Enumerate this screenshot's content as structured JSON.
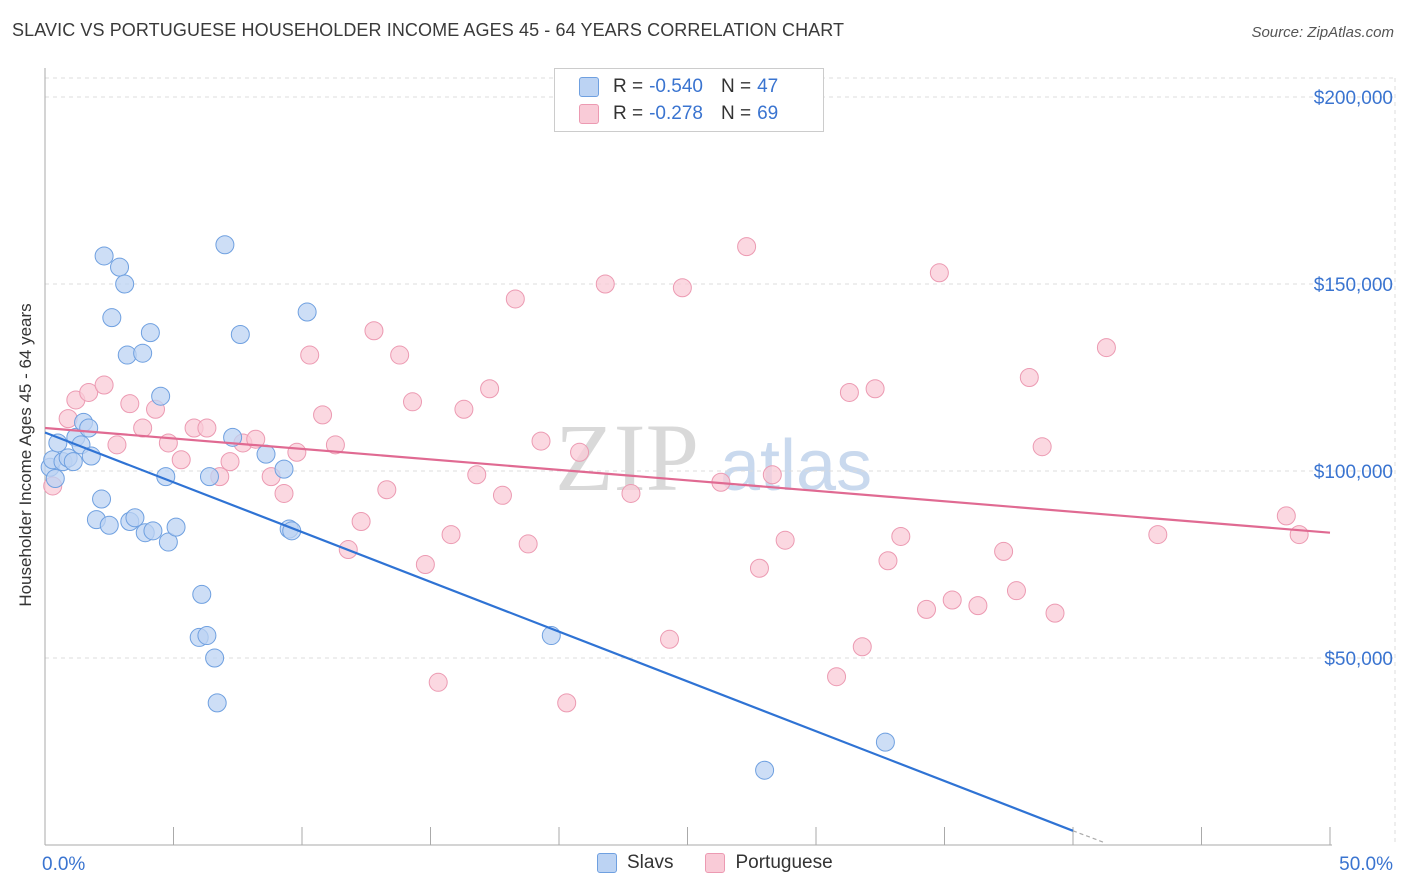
{
  "title": "SLAVIC VS PORTUGUESE HOUSEHOLDER INCOME AGES 45 - 64 YEARS CORRELATION CHART",
  "source": "Source: ZipAtlas.com",
  "watermark": {
    "zip": "ZIP",
    "atlas": "atlas"
  },
  "legend": {
    "rows": [
      {
        "r_label": "R =",
        "r_value": "-0.540",
        "n_label": "N =",
        "n_value": "47",
        "fill": "#bcd3f3",
        "stroke": "#6fa0e0"
      },
      {
        "r_label": "R =",
        "r_value": "-0.278",
        "n_label": "N =",
        "n_value": "69",
        "fill": "#f9cbd7",
        "stroke": "#ec9ab2"
      }
    ]
  },
  "bottom_legend": [
    {
      "label": "Slavs",
      "fill": "#bcd3f3",
      "stroke": "#6fa0e0"
    },
    {
      "label": "Portuguese",
      "fill": "#f9cbd7",
      "stroke": "#ec9ab2"
    }
  ],
  "chart_data": {
    "type": "scatter",
    "title": "SLAVIC VS PORTUGUESE HOUSEHOLDER INCOME AGES 45 - 64 YEARS CORRELATION CHART",
    "xlabel": "",
    "ylabel": "Householder Income Ages 45 - 64 years",
    "xlim": [
      0,
      50
    ],
    "ylim": [
      0,
      200000
    ],
    "x_tick_labels": [
      "0.0%",
      "50.0%"
    ],
    "y_ticks": [
      50000,
      100000,
      150000,
      200000
    ],
    "y_tick_labels": [
      "$50,000",
      "$100,000",
      "$150,000",
      "$200,000"
    ],
    "grid": true,
    "legend_position": "top-center",
    "series": [
      {
        "name": "Slavs",
        "color": "#6fa0e0",
        "fill": "#bcd3f3",
        "line_color": "#2f73d4",
        "trend": {
          "x": [
            0,
            40
          ],
          "y": [
            110300,
            3800
          ]
        },
        "trend_dashed_extension": {
          "x": [
            40,
            41.2
          ],
          "y": [
            3800,
            700
          ]
        },
        "points": [
          [
            0.2,
            101000
          ],
          [
            0.3,
            103000
          ],
          [
            0.5,
            107500
          ],
          [
            0.7,
            102500
          ],
          [
            0.9,
            103500
          ],
          [
            1.1,
            102500
          ],
          [
            1.2,
            109000
          ],
          [
            1.4,
            107000
          ],
          [
            1.5,
            113000
          ],
          [
            1.7,
            111500
          ],
          [
            1.8,
            104000
          ],
          [
            2.0,
            87000
          ],
          [
            2.2,
            92500
          ],
          [
            2.3,
            157500
          ],
          [
            2.5,
            85500
          ],
          [
            2.6,
            141000
          ],
          [
            2.9,
            154500
          ],
          [
            3.1,
            150000
          ],
          [
            3.2,
            131000
          ],
          [
            3.3,
            86500
          ],
          [
            3.5,
            87500
          ],
          [
            3.8,
            131500
          ],
          [
            3.9,
            83500
          ],
          [
            4.1,
            137000
          ],
          [
            4.2,
            84000
          ],
          [
            4.5,
            120000
          ],
          [
            4.7,
            98500
          ],
          [
            4.8,
            81000
          ],
          [
            5.1,
            85000
          ],
          [
            6.0,
            55500
          ],
          [
            6.1,
            67000
          ],
          [
            6.3,
            56000
          ],
          [
            6.4,
            98500
          ],
          [
            6.6,
            50000
          ],
          [
            6.7,
            38000
          ],
          [
            7.0,
            160500
          ],
          [
            7.3,
            109000
          ],
          [
            7.6,
            136500
          ],
          [
            8.6,
            104500
          ],
          [
            9.3,
            100500
          ],
          [
            9.5,
            84500
          ],
          [
            9.6,
            84000
          ],
          [
            10.2,
            142500
          ],
          [
            19.7,
            56000
          ],
          [
            28.0,
            20000
          ],
          [
            32.7,
            27500
          ],
          [
            0.4,
            98000
          ]
        ]
      },
      {
        "name": "Portuguese",
        "color": "#ec9ab2",
        "fill": "#f9cbd7",
        "line_color": "#e06a92",
        "trend": {
          "x": [
            0,
            50
          ],
          "y": [
            111500,
            83500
          ]
        },
        "points": [
          [
            0.3,
            96000
          ],
          [
            0.9,
            114000
          ],
          [
            1.2,
            119000
          ],
          [
            1.7,
            121000
          ],
          [
            2.3,
            123000
          ],
          [
            2.8,
            107000
          ],
          [
            3.3,
            118000
          ],
          [
            3.8,
            111500
          ],
          [
            4.3,
            116500
          ],
          [
            4.8,
            107500
          ],
          [
            5.3,
            103000
          ],
          [
            5.8,
            111500
          ],
          [
            6.3,
            111500
          ],
          [
            6.8,
            98500
          ],
          [
            7.2,
            102500
          ],
          [
            7.7,
            107500
          ],
          [
            8.2,
            108500
          ],
          [
            8.8,
            98500
          ],
          [
            9.3,
            94000
          ],
          [
            9.8,
            105000
          ],
          [
            10.3,
            131000
          ],
          [
            10.8,
            115000
          ],
          [
            11.3,
            107000
          ],
          [
            11.8,
            79000
          ],
          [
            12.3,
            86500
          ],
          [
            12.8,
            137500
          ],
          [
            13.3,
            95000
          ],
          [
            13.8,
            131000
          ],
          [
            14.3,
            118500
          ],
          [
            14.8,
            75000
          ],
          [
            15.3,
            43500
          ],
          [
            15.8,
            83000
          ],
          [
            16.3,
            116500
          ],
          [
            16.8,
            99000
          ],
          [
            17.3,
            122000
          ],
          [
            17.8,
            93500
          ],
          [
            18.3,
            146000
          ],
          [
            18.8,
            80500
          ],
          [
            19.3,
            108000
          ],
          [
            20.3,
            38000
          ],
          [
            20.8,
            105000
          ],
          [
            21.8,
            150000
          ],
          [
            22.8,
            94000
          ],
          [
            24.3,
            55000
          ],
          [
            24.8,
            149000
          ],
          [
            26.3,
            97000
          ],
          [
            27.3,
            160000
          ],
          [
            27.8,
            74000
          ],
          [
            28.3,
            99000
          ],
          [
            28.8,
            81500
          ],
          [
            30.8,
            45000
          ],
          [
            31.3,
            121000
          ],
          [
            31.8,
            53000
          ],
          [
            32.3,
            122000
          ],
          [
            32.8,
            76000
          ],
          [
            33.3,
            82500
          ],
          [
            34.3,
            63000
          ],
          [
            34.8,
            153000
          ],
          [
            35.3,
            65500
          ],
          [
            36.3,
            64000
          ],
          [
            37.3,
            78500
          ],
          [
            37.8,
            68000
          ],
          [
            38.3,
            125000
          ],
          [
            38.8,
            106500
          ],
          [
            39.3,
            62000
          ],
          [
            41.3,
            133000
          ],
          [
            43.3,
            83000
          ],
          [
            48.3,
            88000
          ],
          [
            48.8,
            83000
          ]
        ]
      }
    ]
  }
}
